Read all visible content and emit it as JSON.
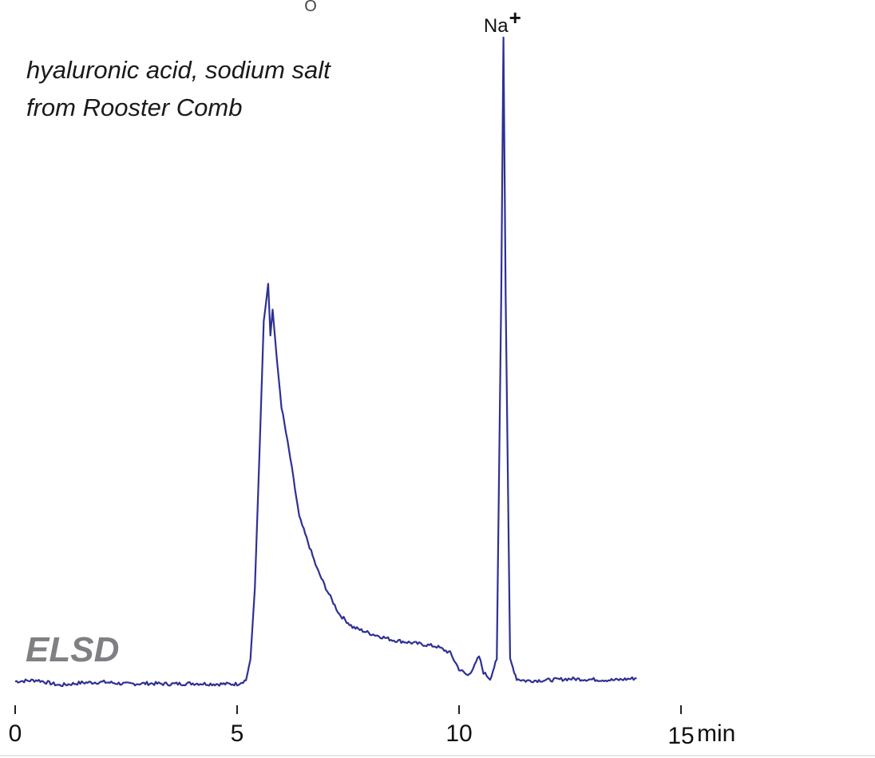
{
  "chart_data": {
    "type": "line",
    "subtitle_lines": [
      "hyaluronic acid, sodium salt",
      "from Rooster Comb"
    ],
    "detector_label": "ELSD",
    "x_unit": "min",
    "xlim": [
      0,
      17.5
    ],
    "ylim": [
      0,
      100
    ],
    "x_ticks": [
      0,
      5,
      10,
      15
    ],
    "x_tick_labels": [
      "0",
      "5",
      "10",
      "15"
    ],
    "top_partial_glyph": "O",
    "line_color": "#2e3192",
    "annotations": [
      {
        "name": "sodium-peak",
        "text": "Na",
        "superscript": "+",
        "x": 11.0,
        "y": 100
      }
    ],
    "series": [
      {
        "points": [
          [
            0.0,
            0.6
          ],
          [
            0.5,
            0.8
          ],
          [
            1.0,
            0.0
          ],
          [
            1.5,
            0.4
          ],
          [
            2.0,
            0.5
          ],
          [
            2.5,
            0.2
          ],
          [
            3.0,
            0.3
          ],
          [
            3.5,
            0.2
          ],
          [
            4.0,
            0.3
          ],
          [
            4.5,
            0.2
          ],
          [
            5.0,
            0.2
          ],
          [
            5.2,
            0.8
          ],
          [
            5.3,
            4.0
          ],
          [
            5.4,
            15.0
          ],
          [
            5.5,
            35.0
          ],
          [
            5.6,
            56.0
          ],
          [
            5.7,
            62.0
          ],
          [
            5.75,
            54.0
          ],
          [
            5.8,
            58.0
          ],
          [
            5.9,
            50.0
          ],
          [
            6.0,
            43.0
          ],
          [
            6.2,
            35.0
          ],
          [
            6.4,
            26.0
          ],
          [
            6.6,
            22.0
          ],
          [
            6.8,
            18.0
          ],
          [
            7.0,
            15.0
          ],
          [
            7.3,
            11.0
          ],
          [
            7.6,
            9.0
          ],
          [
            8.0,
            8.0
          ],
          [
            8.5,
            7.0
          ],
          [
            9.0,
            6.5
          ],
          [
            9.5,
            6.0
          ],
          [
            9.8,
            5.0
          ],
          [
            10.0,
            2.5
          ],
          [
            10.2,
            1.5
          ],
          [
            10.35,
            3.0
          ],
          [
            10.45,
            4.5
          ],
          [
            10.55,
            2.0
          ],
          [
            10.7,
            1.0
          ],
          [
            10.85,
            4.0
          ],
          [
            10.95,
            60.0
          ],
          [
            11.0,
            100.0
          ],
          [
            11.05,
            60.0
          ],
          [
            11.15,
            4.0
          ],
          [
            11.3,
            1.0
          ],
          [
            11.5,
            0.7
          ],
          [
            12.0,
            0.8
          ],
          [
            12.5,
            1.0
          ],
          [
            13.0,
            0.9
          ],
          [
            13.5,
            0.8
          ],
          [
            14.0,
            1.1
          ]
        ]
      }
    ]
  }
}
